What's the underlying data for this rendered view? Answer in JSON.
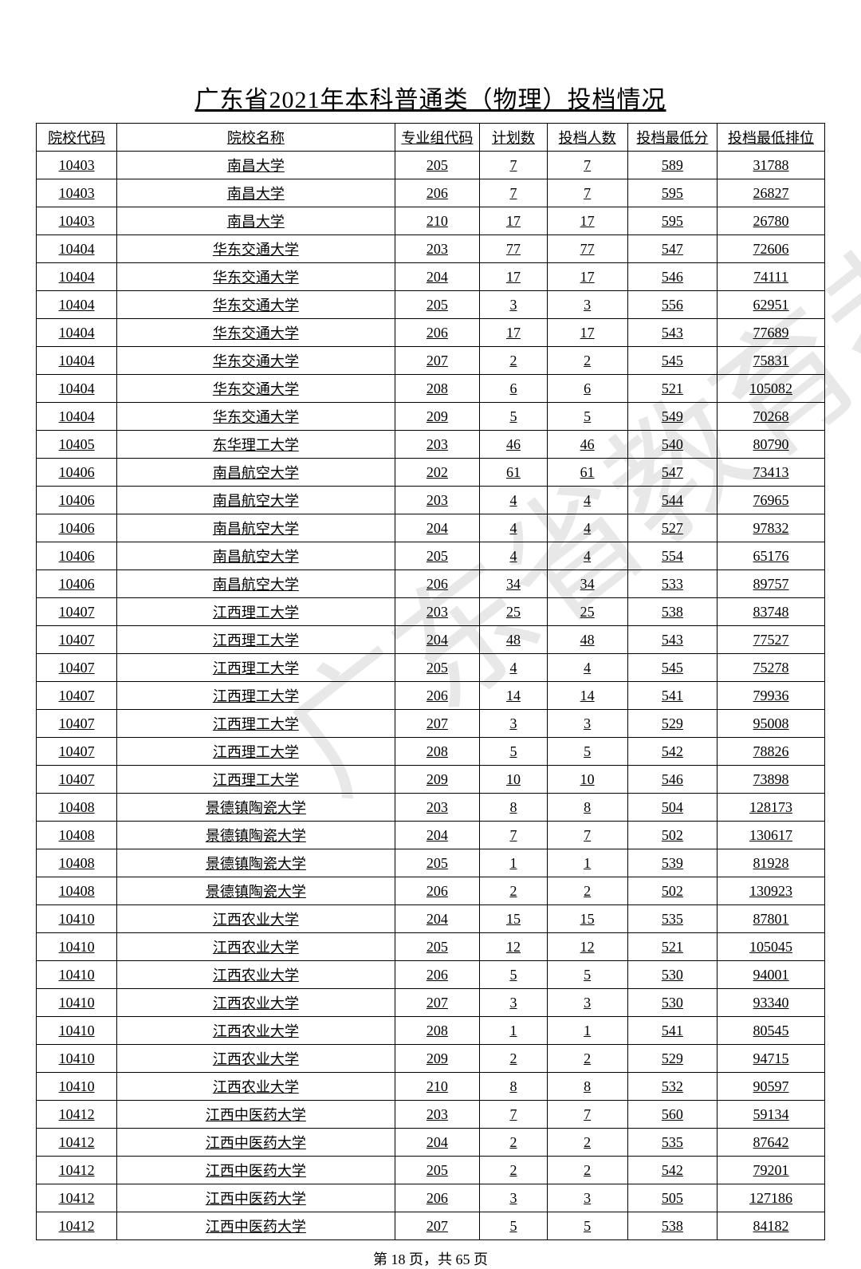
{
  "title": "广东省2021年本科普通类（物理）投档情况",
  "columns": [
    "院校代码",
    "院校名称",
    "专业组代码",
    "计划数",
    "投档人数",
    "投档最低分",
    "投档最低排位"
  ],
  "rows": [
    [
      "10403",
      "南昌大学",
      "205",
      "7",
      "7",
      "589",
      "31788"
    ],
    [
      "10403",
      "南昌大学",
      "206",
      "7",
      "7",
      "595",
      "26827"
    ],
    [
      "10403",
      "南昌大学",
      "210",
      "17",
      "17",
      "595",
      "26780"
    ],
    [
      "10404",
      "华东交通大学",
      "203",
      "77",
      "77",
      "547",
      "72606"
    ],
    [
      "10404",
      "华东交通大学",
      "204",
      "17",
      "17",
      "546",
      "74111"
    ],
    [
      "10404",
      "华东交通大学",
      "205",
      "3",
      "3",
      "556",
      "62951"
    ],
    [
      "10404",
      "华东交通大学",
      "206",
      "17",
      "17",
      "543",
      "77689"
    ],
    [
      "10404",
      "华东交通大学",
      "207",
      "2",
      "2",
      "545",
      "75831"
    ],
    [
      "10404",
      "华东交通大学",
      "208",
      "6",
      "6",
      "521",
      "105082"
    ],
    [
      "10404",
      "华东交通大学",
      "209",
      "5",
      "5",
      "549",
      "70268"
    ],
    [
      "10405",
      "东华理工大学",
      "203",
      "46",
      "46",
      "540",
      "80790"
    ],
    [
      "10406",
      "南昌航空大学",
      "202",
      "61",
      "61",
      "547",
      "73413"
    ],
    [
      "10406",
      "南昌航空大学",
      "203",
      "4",
      "4",
      "544",
      "76965"
    ],
    [
      "10406",
      "南昌航空大学",
      "204",
      "4",
      "4",
      "527",
      "97832"
    ],
    [
      "10406",
      "南昌航空大学",
      "205",
      "4",
      "4",
      "554",
      "65176"
    ],
    [
      "10406",
      "南昌航空大学",
      "206",
      "34",
      "34",
      "533",
      "89757"
    ],
    [
      "10407",
      "江西理工大学",
      "203",
      "25",
      "25",
      "538",
      "83748"
    ],
    [
      "10407",
      "江西理工大学",
      "204",
      "48",
      "48",
      "543",
      "77527"
    ],
    [
      "10407",
      "江西理工大学",
      "205",
      "4",
      "4",
      "545",
      "75278"
    ],
    [
      "10407",
      "江西理工大学",
      "206",
      "14",
      "14",
      "541",
      "79936"
    ],
    [
      "10407",
      "江西理工大学",
      "207",
      "3",
      "3",
      "529",
      "95008"
    ],
    [
      "10407",
      "江西理工大学",
      "208",
      "5",
      "5",
      "542",
      "78826"
    ],
    [
      "10407",
      "江西理工大学",
      "209",
      "10",
      "10",
      "546",
      "73898"
    ],
    [
      "10408",
      "景德镇陶瓷大学",
      "203",
      "8",
      "8",
      "504",
      "128173"
    ],
    [
      "10408",
      "景德镇陶瓷大学",
      "204",
      "7",
      "7",
      "502",
      "130617"
    ],
    [
      "10408",
      "景德镇陶瓷大学",
      "205",
      "1",
      "1",
      "539",
      "81928"
    ],
    [
      "10408",
      "景德镇陶瓷大学",
      "206",
      "2",
      "2",
      "502",
      "130923"
    ],
    [
      "10410",
      "江西农业大学",
      "204",
      "15",
      "15",
      "535",
      "87801"
    ],
    [
      "10410",
      "江西农业大学",
      "205",
      "12",
      "12",
      "521",
      "105045"
    ],
    [
      "10410",
      "江西农业大学",
      "206",
      "5",
      "5",
      "530",
      "94001"
    ],
    [
      "10410",
      "江西农业大学",
      "207",
      "3",
      "3",
      "530",
      "93340"
    ],
    [
      "10410",
      "江西农业大学",
      "208",
      "1",
      "1",
      "541",
      "80545"
    ],
    [
      "10410",
      "江西农业大学",
      "209",
      "2",
      "2",
      "529",
      "94715"
    ],
    [
      "10410",
      "江西农业大学",
      "210",
      "8",
      "8",
      "532",
      "90597"
    ],
    [
      "10412",
      "江西中医药大学",
      "203",
      "7",
      "7",
      "560",
      "59134"
    ],
    [
      "10412",
      "江西中医药大学",
      "204",
      "2",
      "2",
      "535",
      "87642"
    ],
    [
      "10412",
      "江西中医药大学",
      "205",
      "2",
      "2",
      "542",
      "79201"
    ],
    [
      "10412",
      "江西中医药大学",
      "206",
      "3",
      "3",
      "505",
      "127186"
    ],
    [
      "10412",
      "江西中医药大学",
      "207",
      "5",
      "5",
      "538",
      "84182"
    ]
  ],
  "pager": "第 18 页，共 65 页",
  "watermark_text": "广东省教育考试院",
  "watermark_color": "#d9d9d9",
  "col_widths": [
    "col-code",
    "col-name",
    "col-group",
    "col-plan",
    "col-filed",
    "col-score",
    "col-rank"
  ]
}
